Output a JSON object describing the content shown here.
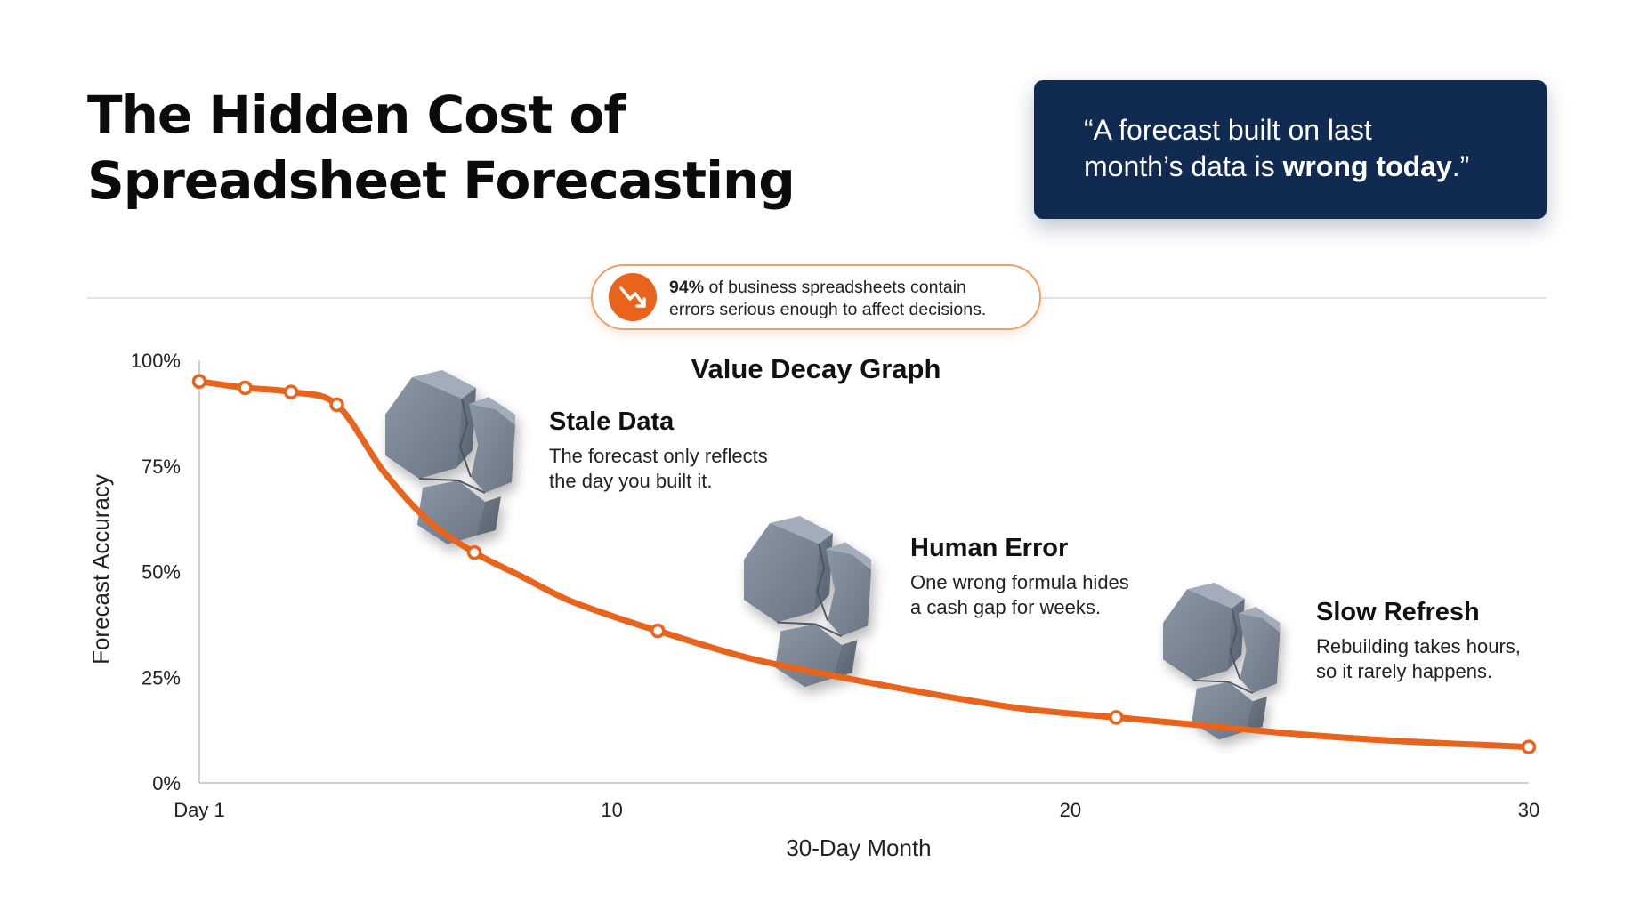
{
  "title": {
    "line1": "The Hidden Cost of",
    "line2": "Spreadsheet Forecasting"
  },
  "quote": {
    "line1": "“A forecast built on last",
    "line2_prefix": "month’s data is ",
    "line2_bold": "wrong today",
    "line2_suffix": ".”"
  },
  "stat": {
    "bold": "94%",
    "line1_rest": " of business spreadsheets contain",
    "line2": "errors serious enough to affect decisions.",
    "icon": "trend-down-icon"
  },
  "callouts": [
    {
      "id": "stale-data",
      "title": "Stale Data",
      "line1": "The forecast only reflects",
      "line2": "the day you built it.",
      "icon": "cracked-block-icon"
    },
    {
      "id": "human-error",
      "title": "Human Error",
      "line1": "One wrong formula hides",
      "line2": "a cash gap for weeks.",
      "icon": "cracked-block-icon"
    },
    {
      "id": "slow-refresh",
      "title": "Slow Refresh",
      "line1": "Rebuilding takes hours,",
      "line2": "so it rarely happens.",
      "icon": "cracked-block-icon"
    }
  ],
  "colors": {
    "line": "#e8631c",
    "quote_bg": "#112a52",
    "block": "#7a8594"
  },
  "chart_data": {
    "type": "line",
    "title": "Value Decay Graph",
    "xlabel": "30-Day Month",
    "ylabel": "Forecast Accuracy",
    "xlim": [
      1,
      30
    ],
    "ylim": [
      0,
      100
    ],
    "x_ticks": [
      1,
      10,
      20,
      30
    ],
    "x_tick_labels": [
      "Day 1",
      "10",
      "20",
      "30"
    ],
    "y_ticks": [
      0,
      25,
      50,
      75,
      100
    ],
    "y_tick_labels": [
      "0%",
      "25%",
      "50%",
      "75%",
      "100%"
    ],
    "grid": false,
    "series": [
      {
        "markers": [
          {
            "x": 1,
            "y": 95
          },
          {
            "x": 2,
            "y": 93.5
          },
          {
            "x": 3,
            "y": 92.5
          },
          {
            "x": 4,
            "y": 89.5
          },
          {
            "x": 7,
            "y": 54.5
          },
          {
            "x": 11,
            "y": 36
          },
          {
            "x": 21,
            "y": 15.5
          },
          {
            "x": 30,
            "y": 8.5
          }
        ],
        "curve": [
          {
            "x": 1,
            "y": 95
          },
          {
            "x": 2,
            "y": 93.5
          },
          {
            "x": 3,
            "y": 92.5
          },
          {
            "x": 4,
            "y": 89.5
          },
          {
            "x": 5,
            "y": 74
          },
          {
            "x": 6,
            "y": 62
          },
          {
            "x": 7,
            "y": 54.5
          },
          {
            "x": 8,
            "y": 49
          },
          {
            "x": 9,
            "y": 43.5
          },
          {
            "x": 10,
            "y": 39.5
          },
          {
            "x": 11,
            "y": 36
          },
          {
            "x": 13,
            "y": 29.5
          },
          {
            "x": 15,
            "y": 25
          },
          {
            "x": 17,
            "y": 21
          },
          {
            "x": 19,
            "y": 17.5
          },
          {
            "x": 21,
            "y": 15.5
          },
          {
            "x": 23,
            "y": 13.5
          },
          {
            "x": 25,
            "y": 11.5
          },
          {
            "x": 27,
            "y": 10
          },
          {
            "x": 30,
            "y": 8.5
          }
        ]
      }
    ]
  }
}
